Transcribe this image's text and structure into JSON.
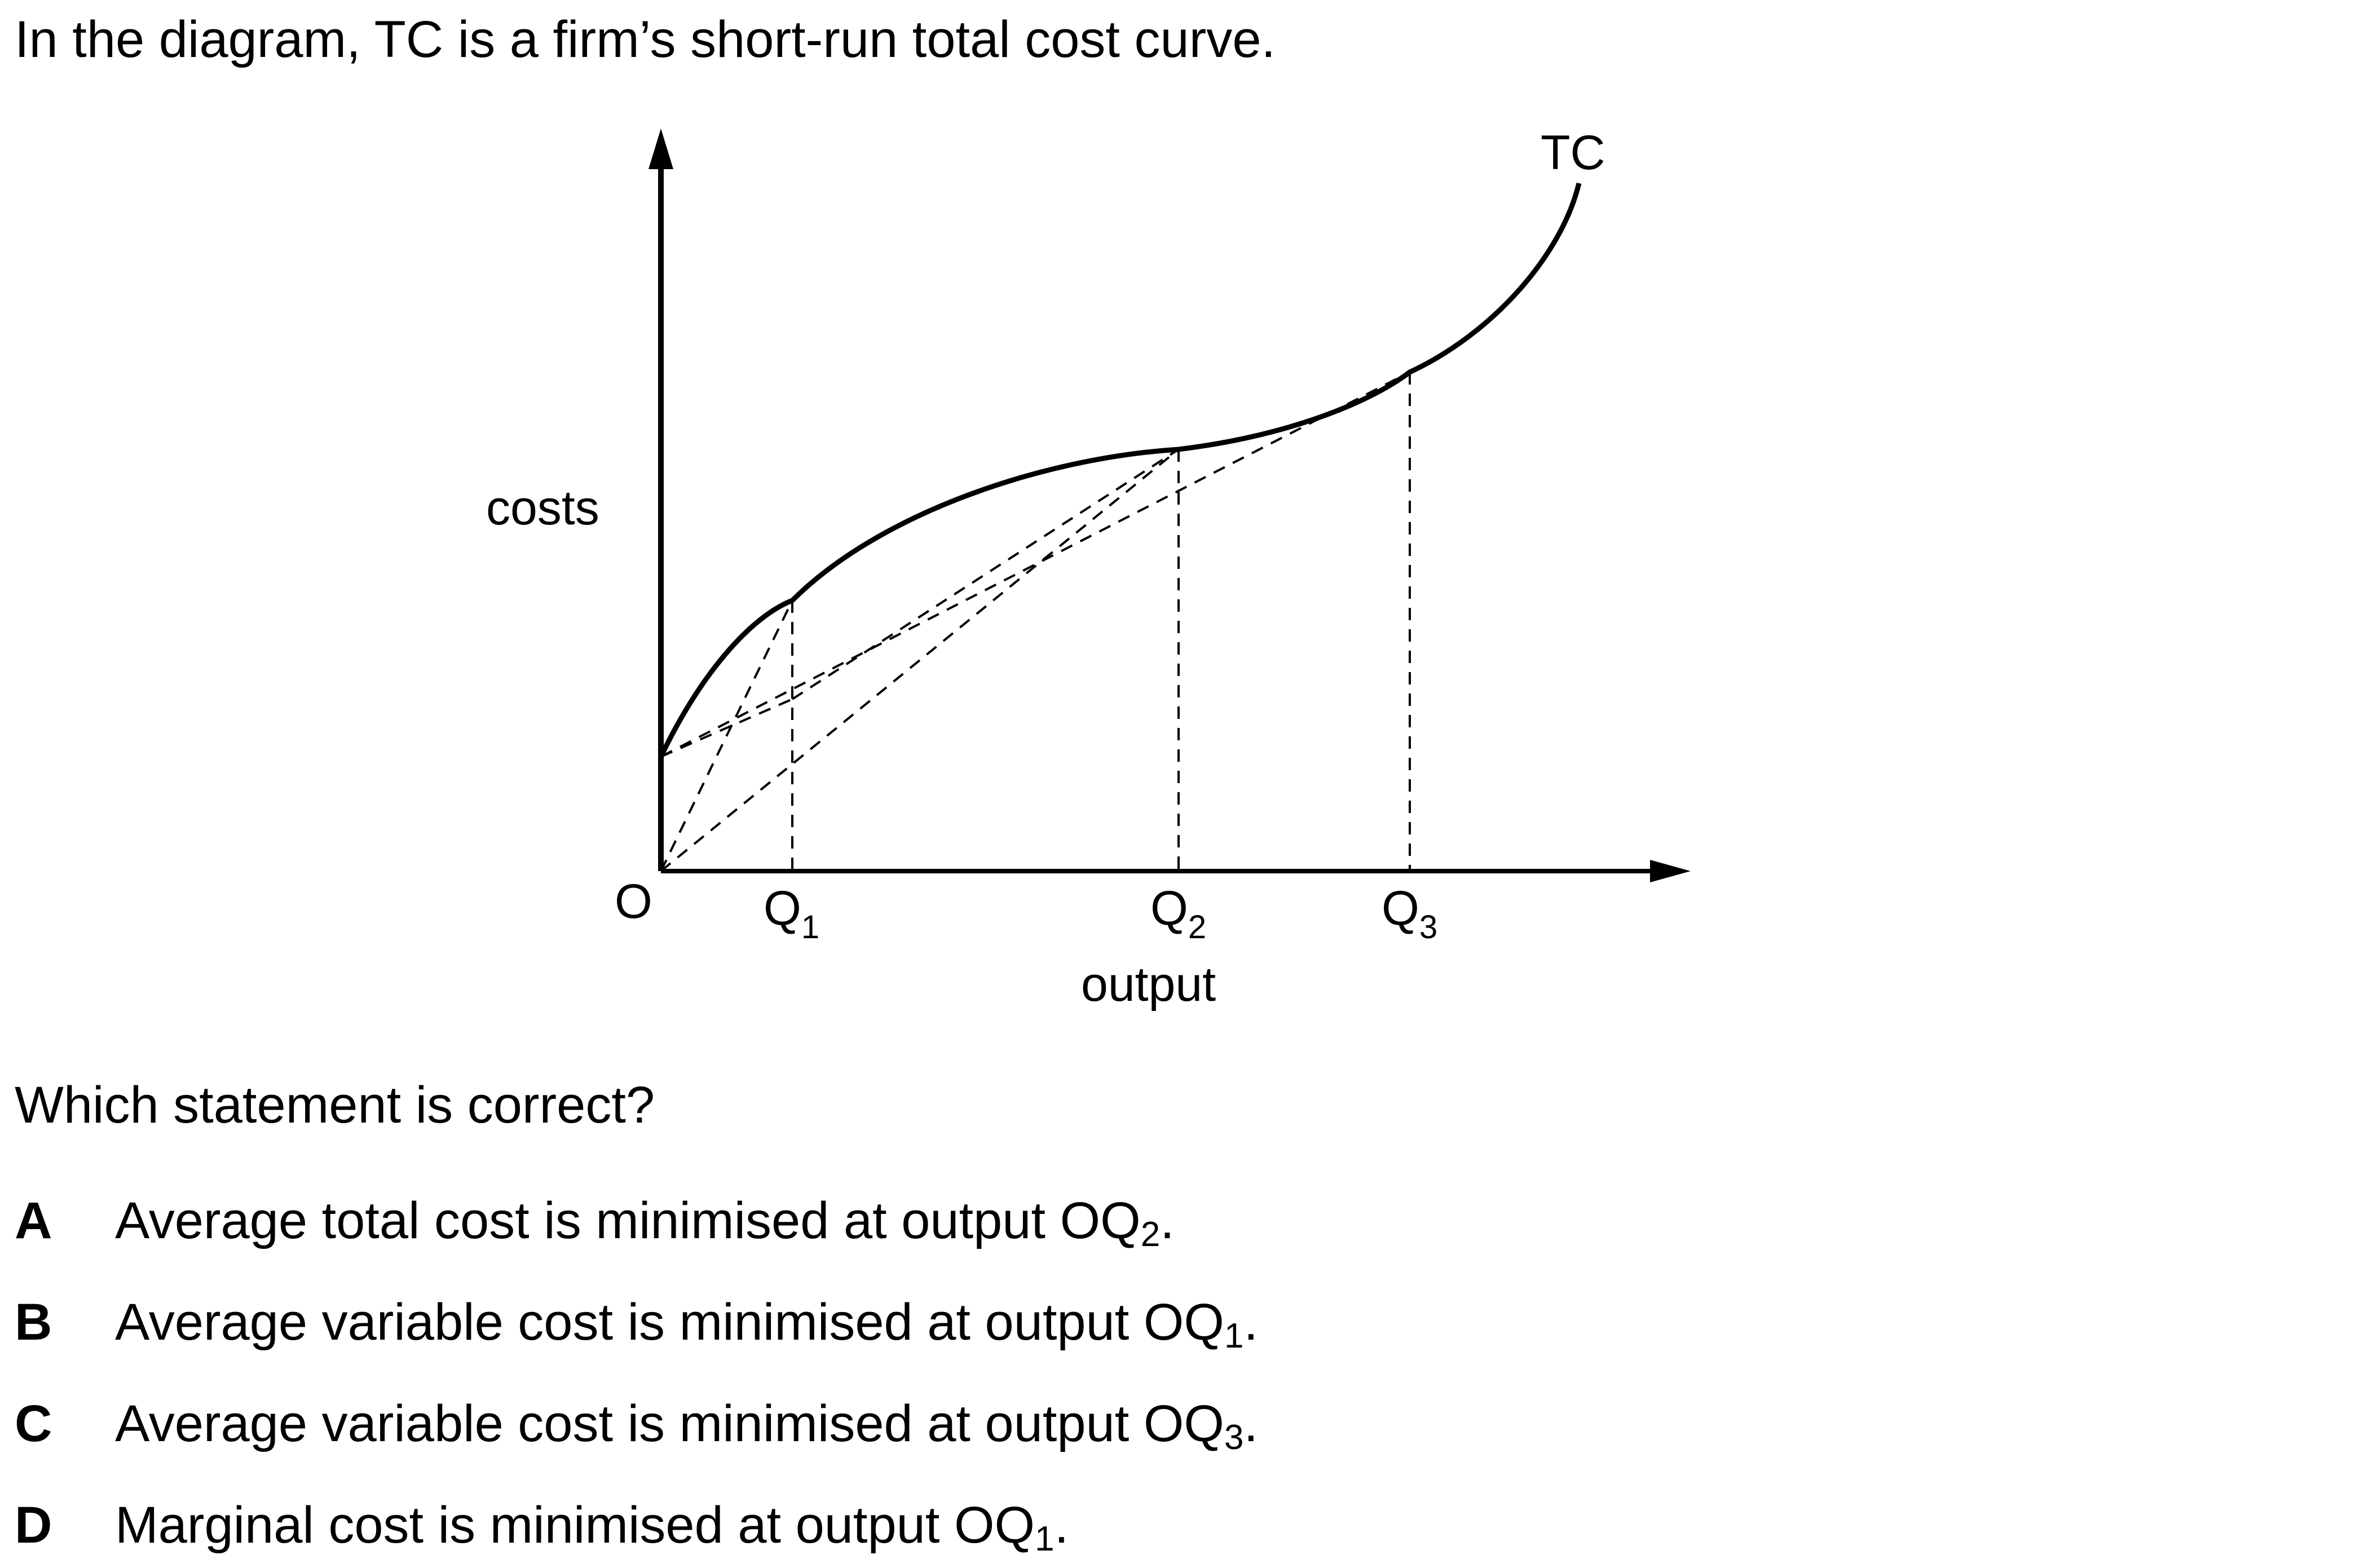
{
  "intro": "In the diagram, TC is a firm’s short-run total cost curve.",
  "diagram": {
    "y_axis_label": "costs",
    "x_axis_label": "output",
    "origin_label": "O",
    "curve_label": "TC",
    "q1": {
      "base": "Q",
      "sub": "1"
    },
    "q2": {
      "base": "Q",
      "sub": "2"
    },
    "q3": {
      "base": "Q",
      "sub": "3"
    }
  },
  "question": "Which statement is correct?",
  "options": [
    {
      "letter": "A",
      "text": "Average total cost is minimised at output OQ",
      "sub": "2",
      "end": "."
    },
    {
      "letter": "B",
      "text": "Average variable cost is minimised at output OQ",
      "sub": "1",
      "end": "."
    },
    {
      "letter": "C",
      "text": "Average variable cost is minimised at output OQ",
      "sub": "3",
      "end": "."
    },
    {
      "letter": "D",
      "text": "Marginal cost is minimised at output OQ",
      "sub": "1",
      "end": "."
    }
  ]
}
